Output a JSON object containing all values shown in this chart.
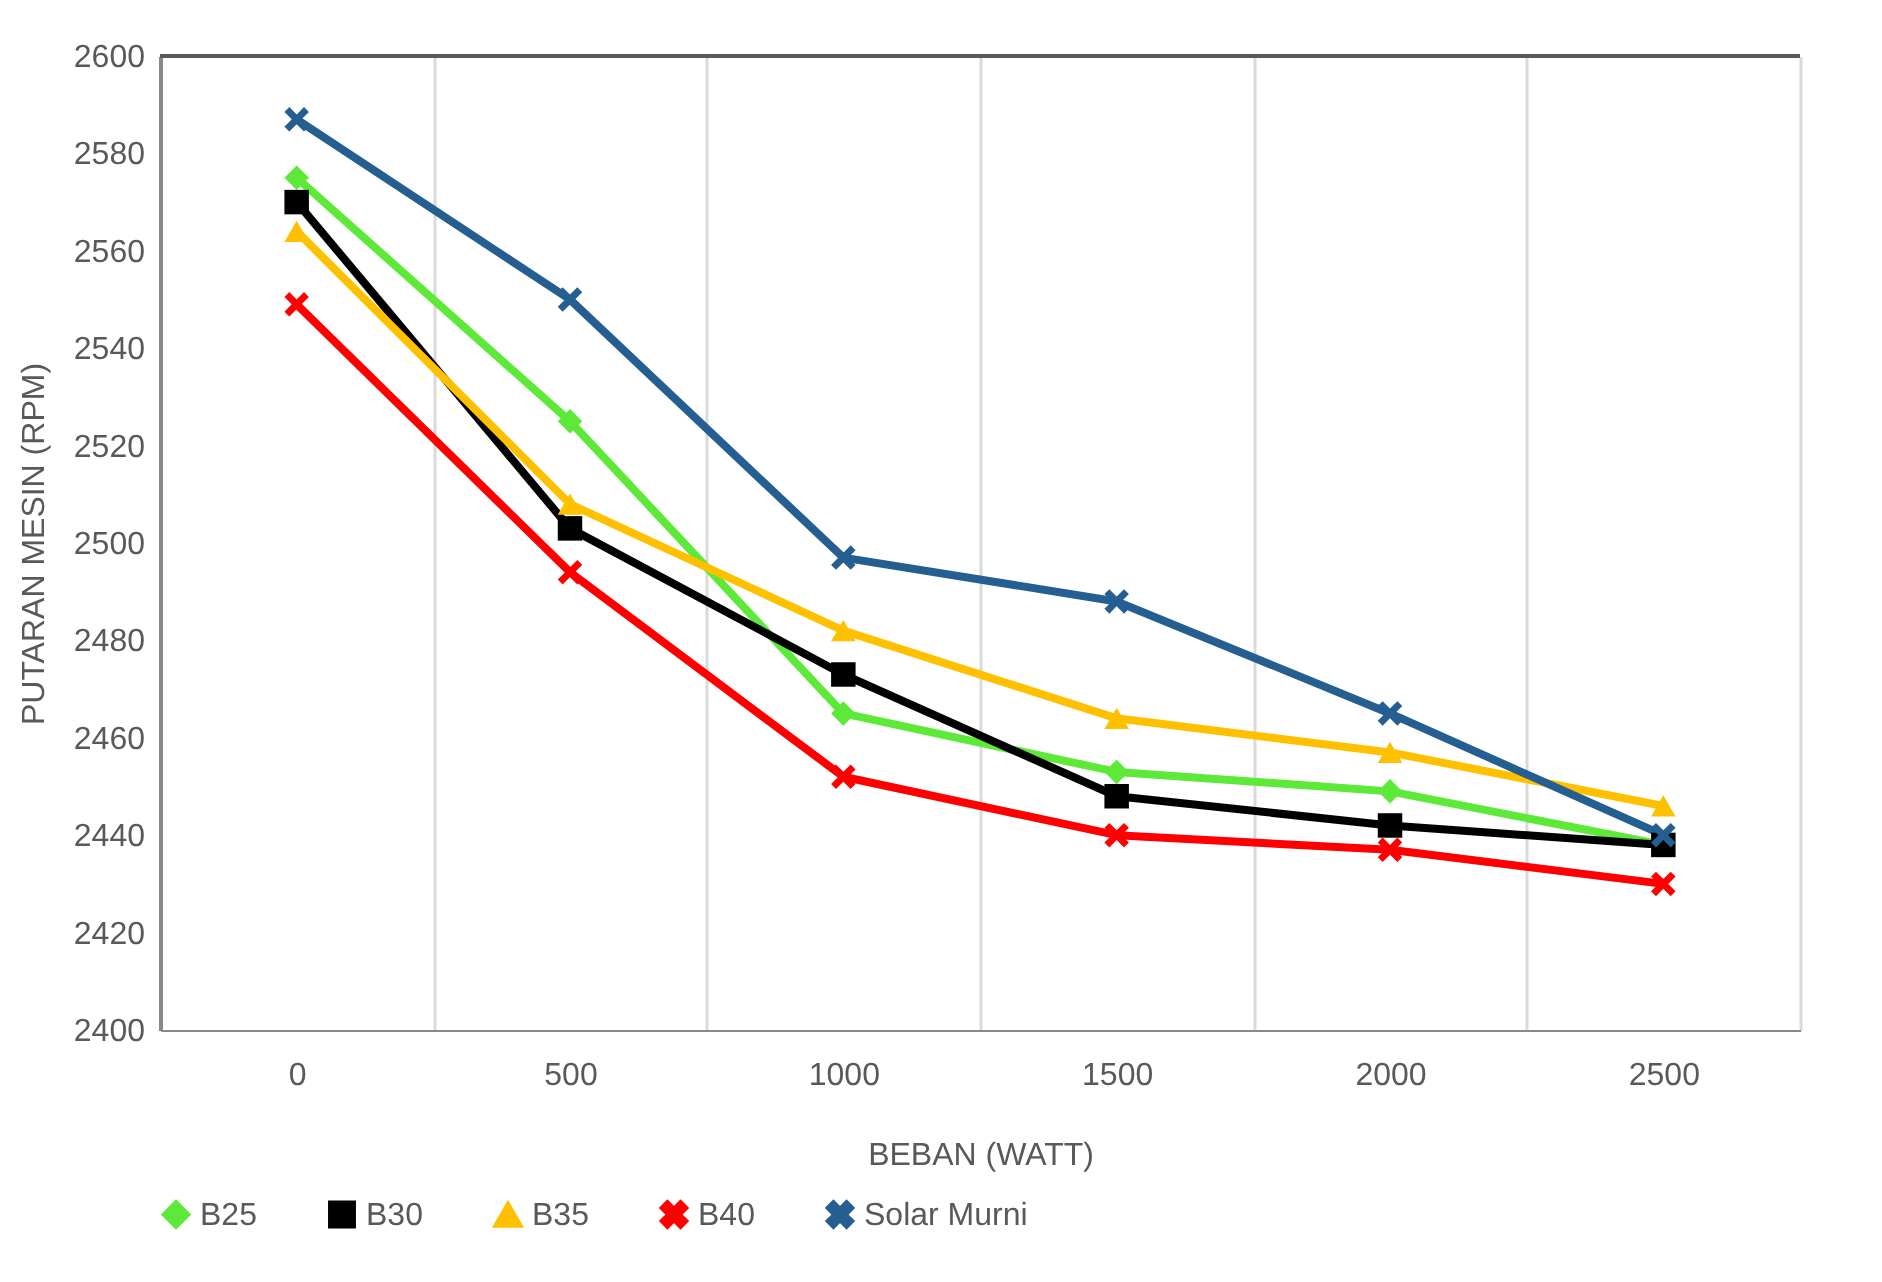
{
  "chart_data": {
    "type": "line",
    "xlabel": "BEBAN (WATT)",
    "ylabel": "PUTARAN MESIN (RPM)",
    "categories": [
      "0",
      "500",
      "1000",
      "1500",
      "2000",
      "2500"
    ],
    "series": [
      {
        "name": "B25",
        "color": "#5ce938",
        "marker": "diamond",
        "values": [
          2575,
          2525,
          2465,
          2453,
          2449,
          2438
        ]
      },
      {
        "name": "B30",
        "color": "#000000",
        "marker": "square",
        "values": [
          2570,
          2503,
          2473,
          2448,
          2442,
          2438
        ]
      },
      {
        "name": "B35",
        "color": "#ffc000",
        "marker": "triangle",
        "values": [
          2564,
          2508,
          2482,
          2464,
          2457,
          2446
        ]
      },
      {
        "name": "B40",
        "color": "#ff0000",
        "marker": "cross",
        "values": [
          2549,
          2494,
          2452,
          2440,
          2437,
          2430
        ]
      },
      {
        "name": "Solar Murni",
        "color": "#255e91",
        "marker": "cross",
        "values": [
          2587,
          2550,
          2497,
          2488,
          2465,
          2440
        ]
      }
    ],
    "ylim": [
      2400,
      2600
    ],
    "yticks": [
      2400,
      2420,
      2440,
      2460,
      2480,
      2500,
      2520,
      2540,
      2560,
      2580,
      2600
    ],
    "grid": "x",
    "legend": "bottom",
    "line_style": "solid"
  }
}
